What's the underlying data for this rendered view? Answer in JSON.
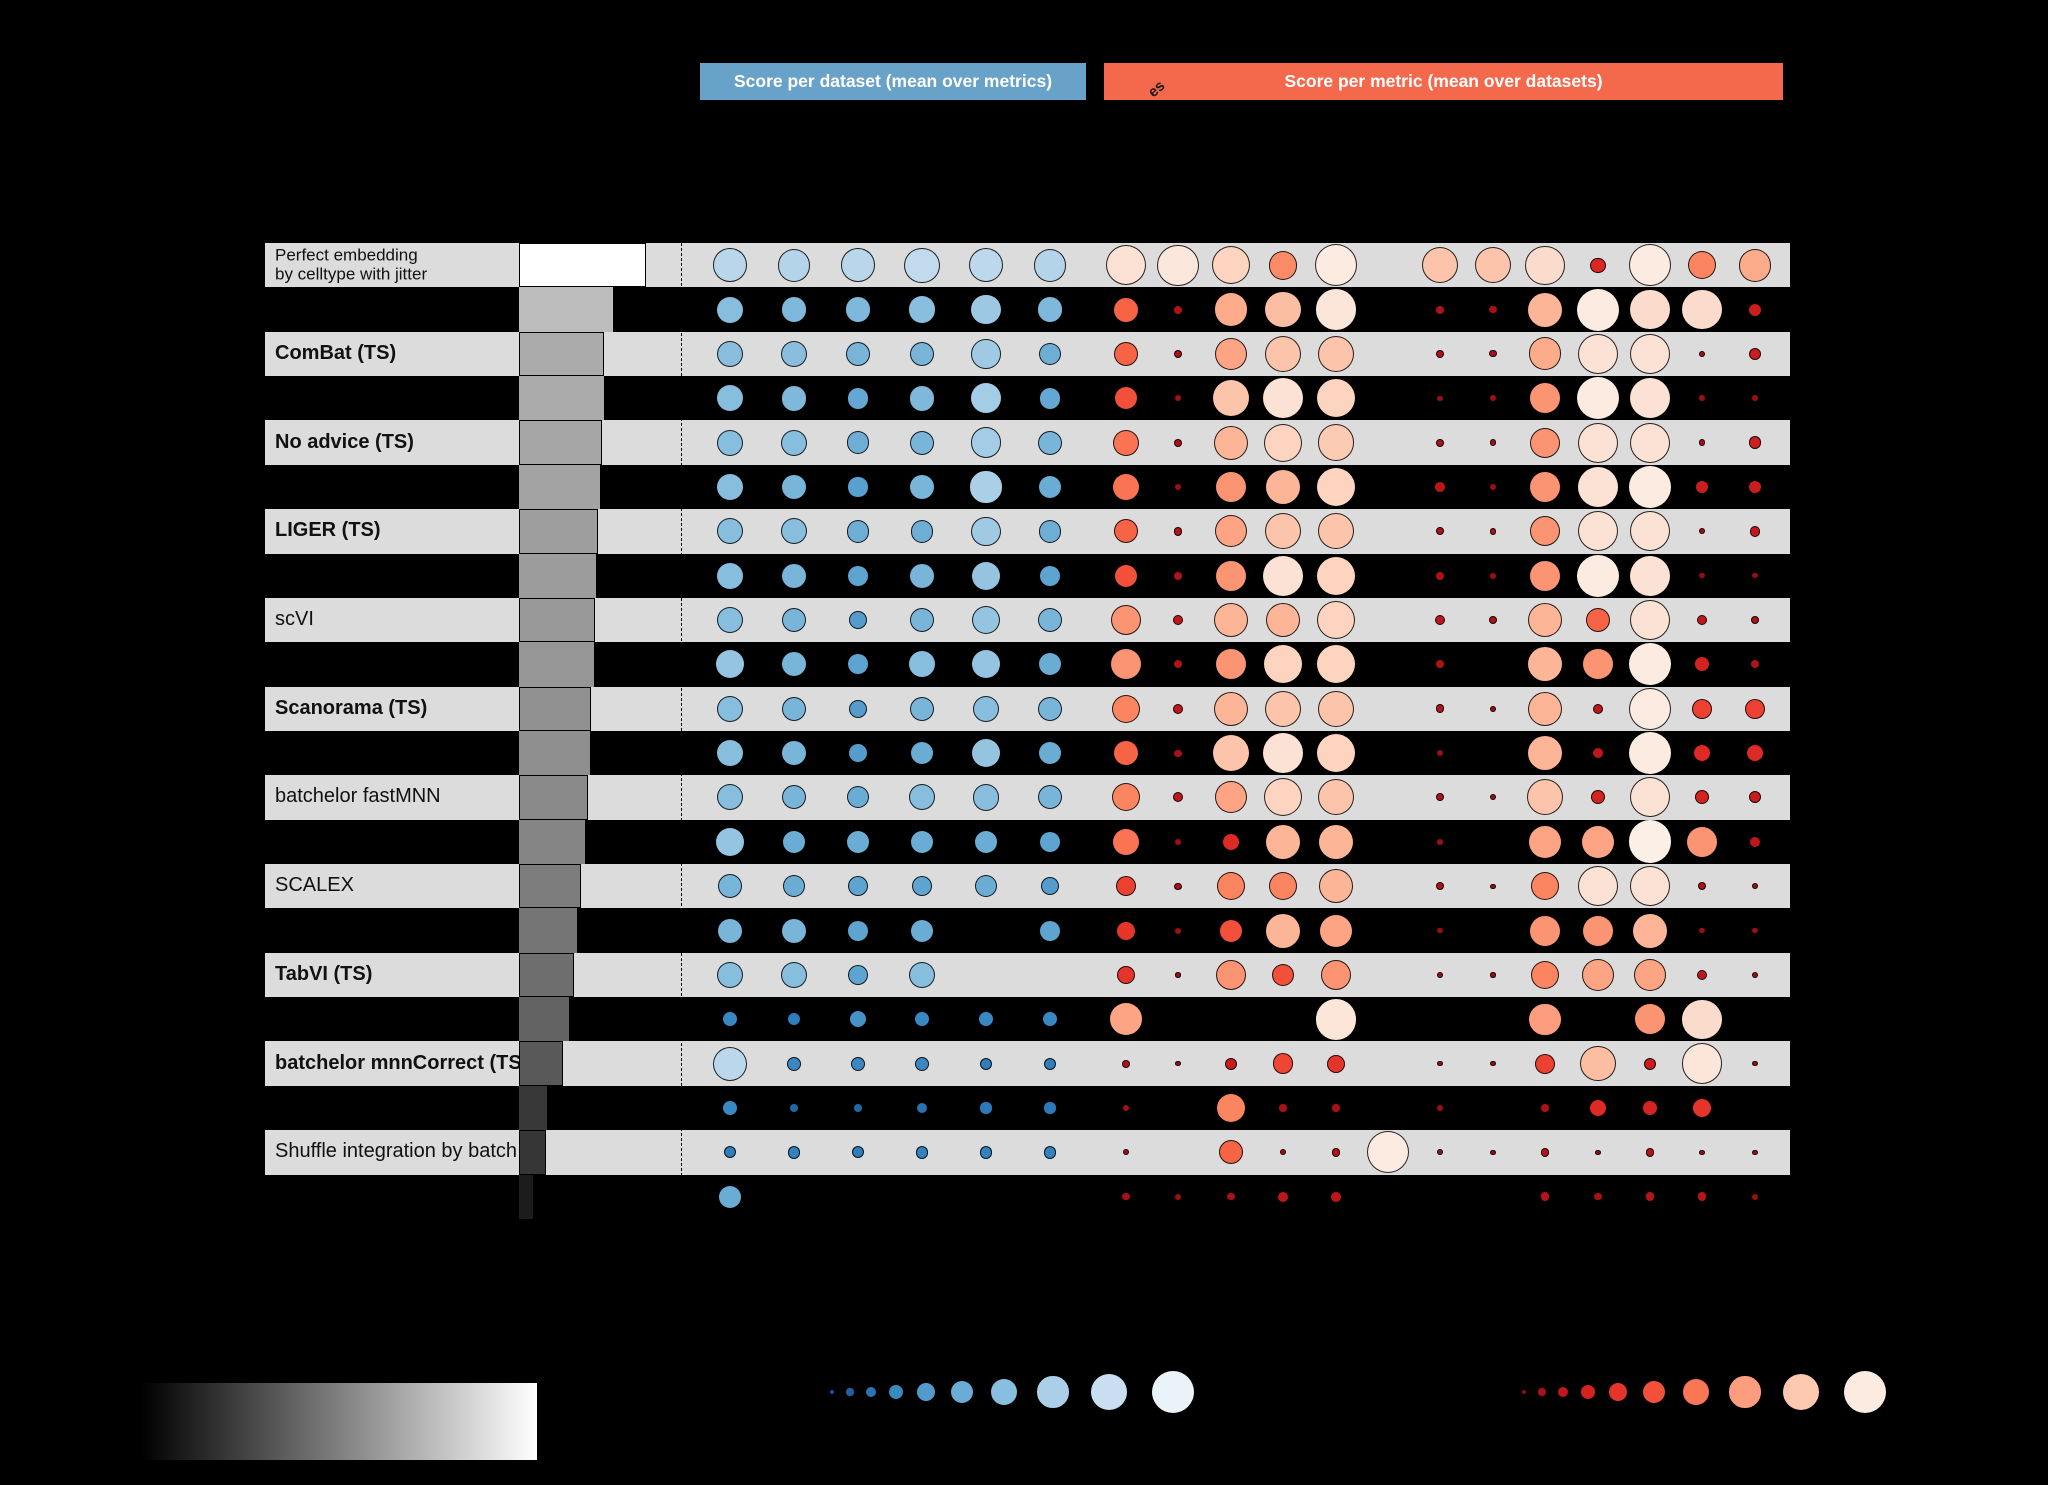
{
  "chart_data": {
    "type": "heatmap",
    "subtype": "dot-size-color-matrix (funky-heatmap benchmark figure)",
    "column_group_banners": [
      {
        "label": "Score per dataset (mean over metrics)",
        "color": "#69a2c9"
      },
      {
        "label": "Score per metric (mean over datasets)",
        "color": "#f4694c"
      }
    ],
    "rotated_label_fragment": "es",
    "n_dataset_columns": 6,
    "n_metric_columns": 13,
    "value_encoding": "each cell value 0-1; larger and lighter dot = higher score; null = no dot; bar column = overall mean score (width and grayscale fill)",
    "rows": [
      {
        "label": "Perfect embedding\nby celltype with jitter",
        "bold": false,
        "bar": 1.0,
        "datasets": [
          0.74,
          0.72,
          0.74,
          0.78,
          0.76,
          0.72
        ],
        "metrics": [
          0.9,
          0.93,
          0.85,
          0.62,
          0.95,
          null,
          0.8,
          0.8,
          0.88,
          0.28,
          0.95,
          0.6,
          0.72
        ]
      },
      {
        "label": "",
        "bold": false,
        "bar": 0.74,
        "datasets": [
          0.55,
          0.52,
          0.52,
          0.56,
          0.63,
          0.52
        ],
        "metrics": [
          0.5,
          0.1,
          0.72,
          0.78,
          0.92,
          null,
          0.1,
          0.08,
          0.75,
          0.95,
          0.88,
          0.88,
          0.2
        ]
      },
      {
        "label": "ComBat (TS)",
        "bold": true,
        "bar": 0.67,
        "datasets": [
          0.56,
          0.56,
          0.5,
          0.5,
          0.64,
          0.46
        ],
        "metrics": [
          0.5,
          0.1,
          0.7,
          0.8,
          0.8,
          null,
          0.1,
          0.08,
          0.72,
          0.9,
          0.9,
          0.06,
          0.2
        ]
      },
      {
        "label": "",
        "bold": false,
        "bar": 0.67,
        "datasets": [
          0.55,
          0.52,
          0.42,
          0.52,
          0.66,
          0.42
        ],
        "metrics": [
          0.45,
          0.06,
          0.8,
          0.9,
          0.85,
          null,
          0.03,
          0.06,
          0.65,
          0.95,
          0.9,
          0.04,
          0.04
        ]
      },
      {
        "label": "No advice (TS)",
        "bold": true,
        "bar": 0.65,
        "datasets": [
          0.55,
          0.55,
          0.46,
          0.5,
          0.66,
          0.5
        ],
        "metrics": [
          0.55,
          0.1,
          0.75,
          0.85,
          0.82,
          null,
          0.1,
          0.06,
          0.65,
          0.9,
          0.9,
          0.07,
          0.22
        ]
      },
      {
        "label": "",
        "bold": false,
        "bar": 0.64,
        "datasets": [
          0.55,
          0.5,
          0.38,
          0.5,
          0.68,
          0.45
        ],
        "metrics": [
          0.55,
          0.05,
          0.65,
          0.75,
          0.85,
          null,
          0.14,
          0.05,
          0.65,
          0.9,
          0.95,
          0.2,
          0.2
        ]
      },
      {
        "label": "LIGER (TS)",
        "bold": true,
        "bar": 0.62,
        "datasets": [
          0.55,
          0.55,
          0.46,
          0.46,
          0.64,
          0.46
        ],
        "metrics": [
          0.5,
          0.12,
          0.7,
          0.8,
          0.8,
          null,
          0.1,
          0.07,
          0.65,
          0.9,
          0.9,
          0.05,
          0.17
        ]
      },
      {
        "label": "",
        "bold": false,
        "bar": 0.61,
        "datasets": [
          0.55,
          0.5,
          0.4,
          0.5,
          0.6,
          0.4
        ],
        "metrics": [
          0.45,
          0.1,
          0.65,
          0.9,
          0.85,
          null,
          0.1,
          0.05,
          0.65,
          0.95,
          0.9,
          0.03,
          0.03
        ]
      },
      {
        "label": "scVI",
        "bold": false,
        "bar": 0.6,
        "datasets": [
          0.55,
          0.5,
          0.36,
          0.5,
          0.6,
          0.5
        ],
        "metrics": [
          0.65,
          0.15,
          0.75,
          0.75,
          0.85,
          null,
          0.15,
          0.1,
          0.75,
          0.5,
          0.9,
          0.15,
          0.1
        ]
      },
      {
        "label": "",
        "bold": false,
        "bar": 0.59,
        "datasets": [
          0.6,
          0.5,
          0.4,
          0.55,
          0.6,
          0.45
        ],
        "metrics": [
          0.65,
          0.1,
          0.65,
          0.85,
          0.85,
          null,
          0.1,
          null,
          0.75,
          0.65,
          0.95,
          0.25,
          0.1
        ]
      },
      {
        "label": "Scanorama (TS)",
        "bold": true,
        "bar": 0.57,
        "datasets": [
          0.55,
          0.5,
          0.36,
          0.5,
          0.56,
          0.5
        ],
        "metrics": [
          0.6,
          0.15,
          0.75,
          0.8,
          0.8,
          null,
          0.12,
          0.05,
          0.75,
          0.15,
          0.95,
          0.4,
          0.4
        ]
      },
      {
        "label": "",
        "bold": false,
        "bar": 0.56,
        "datasets": [
          0.55,
          0.5,
          0.36,
          0.45,
          0.6,
          0.45
        ],
        "metrics": [
          0.5,
          0.08,
          0.8,
          0.9,
          0.85,
          null,
          0.05,
          null,
          0.75,
          0.15,
          0.95,
          0.3,
          0.3
        ]
      },
      {
        "label": "batchelor fastMNN",
        "bold": false,
        "bar": 0.54,
        "datasets": [
          0.55,
          0.5,
          0.45,
          0.55,
          0.56,
          0.5
        ],
        "metrics": [
          0.6,
          0.15,
          0.7,
          0.85,
          0.8,
          null,
          0.1,
          0.05,
          0.8,
          0.25,
          0.9,
          0.25,
          0.2
        ]
      },
      {
        "label": "",
        "bold": false,
        "bar": 0.52,
        "datasets": [
          0.6,
          0.45,
          0.45,
          0.45,
          0.45,
          0.4
        ],
        "metrics": [
          0.55,
          0.05,
          0.3,
          0.75,
          0.75,
          null,
          0.05,
          null,
          0.7,
          0.7,
          0.97,
          0.65,
          0.15
        ]
      },
      {
        "label": "SCALEX",
        "bold": false,
        "bar": 0.49,
        "datasets": [
          0.5,
          0.45,
          0.4,
          0.4,
          0.45,
          0.36
        ],
        "metrics": [
          0.4,
          0.08,
          0.6,
          0.6,
          0.75,
          null,
          0.1,
          0.03,
          0.6,
          0.9,
          0.9,
          0.1,
          0.05
        ]
      },
      {
        "label": "",
        "bold": false,
        "bar": 0.46,
        "datasets": [
          0.5,
          0.5,
          0.4,
          0.45,
          null,
          0.4
        ],
        "metrics": [
          0.35,
          0.05,
          0.45,
          0.75,
          0.7,
          null,
          0.03,
          null,
          0.65,
          0.65,
          0.75,
          0.04,
          0.04
        ]
      },
      {
        "label": "TabVI (TS)",
        "bold": true,
        "bar": 0.43,
        "datasets": [
          0.55,
          0.55,
          0.4,
          0.55,
          null,
          null
        ],
        "metrics": [
          0.35,
          0.03,
          0.65,
          0.45,
          0.65,
          null,
          0.05,
          0.03,
          0.6,
          0.7,
          0.7,
          0.15,
          0.05
        ]
      },
      {
        "label": "",
        "bold": false,
        "bar": 0.39,
        "datasets": [
          0.25,
          0.2,
          0.3,
          0.25,
          0.25,
          0.25
        ],
        "metrics": [
          0.7,
          null,
          null,
          null,
          0.92,
          null,
          null,
          null,
          0.68,
          null,
          0.65,
          0.88,
          null
        ]
      },
      {
        "label": "batchelor mnnCorrect (TS)",
        "bold": true,
        "bar": 0.35,
        "datasets": [
          0.75,
          0.25,
          0.25,
          0.25,
          0.2,
          0.2
        ],
        "metrics": [
          0.1,
          0.03,
          0.2,
          0.42,
          0.35,
          null,
          0.03,
          0.03,
          0.4,
          0.78,
          0.2,
          0.92,
          0.03
        ]
      },
      {
        "label": "",
        "bold": false,
        "bar": 0.22,
        "datasets": [
          0.25,
          0.1,
          0.1,
          0.15,
          0.18,
          0.18
        ],
        "metrics": [
          0.06,
          null,
          0.6,
          0.08,
          0.08,
          null,
          0.05,
          null,
          0.08,
          0.3,
          0.25,
          0.35,
          null
        ]
      },
      {
        "label": "Shuffle integration by batch",
        "bold": false,
        "bar": 0.21,
        "datasets": [
          0.2,
          0.22,
          0.2,
          0.22,
          0.22,
          0.22
        ],
        "metrics": [
          0.05,
          null,
          0.5,
          0.05,
          0.12,
          0.95,
          0.05,
          0.03,
          0.12,
          0.03,
          0.12,
          0.04,
          0.04
        ]
      },
      {
        "label": "",
        "bold": false,
        "bar": 0.11,
        "datasets": [
          0.45,
          null,
          null,
          null,
          null,
          null
        ],
        "metrics": [
          0.08,
          0.05,
          0.08,
          0.15,
          0.15,
          null,
          null,
          null,
          0.12,
          0.08,
          0.12,
          0.12,
          0.05
        ]
      }
    ],
    "legends": {
      "bar_gradient": {
        "min_color": "#000000",
        "max_color": "#ffffff"
      },
      "dot_size_values": [
        0.02,
        0.08,
        0.16,
        0.25,
        0.35,
        0.45,
        0.56,
        0.68,
        0.81,
        0.95
      ]
    },
    "palette": {
      "row_light": "#dcdcdc",
      "row_dark": "#000000",
      "blue_stops": [
        [
          0,
          "#11508f"
        ],
        [
          0.2,
          "#2e7ebc"
        ],
        [
          0.4,
          "#5da4d0"
        ],
        [
          0.55,
          "#87bddd"
        ],
        [
          0.7,
          "#b0d2e9"
        ],
        [
          0.8,
          "#c6dcef"
        ],
        [
          0.9,
          "#dfebf7"
        ],
        [
          1,
          "#f4f9fd"
        ]
      ],
      "red_stops": [
        [
          0,
          "#8c0c12"
        ],
        [
          0.15,
          "#bf161b"
        ],
        [
          0.3,
          "#dd2a24"
        ],
        [
          0.42,
          "#ef4533"
        ],
        [
          0.52,
          "#f96a4a"
        ],
        [
          0.62,
          "#fb8a67"
        ],
        [
          0.72,
          "#fcab8b"
        ],
        [
          0.82,
          "#fccbb3"
        ],
        [
          0.9,
          "#fbe2d4"
        ],
        [
          1,
          "#fdf4ee"
        ]
      ]
    }
  }
}
